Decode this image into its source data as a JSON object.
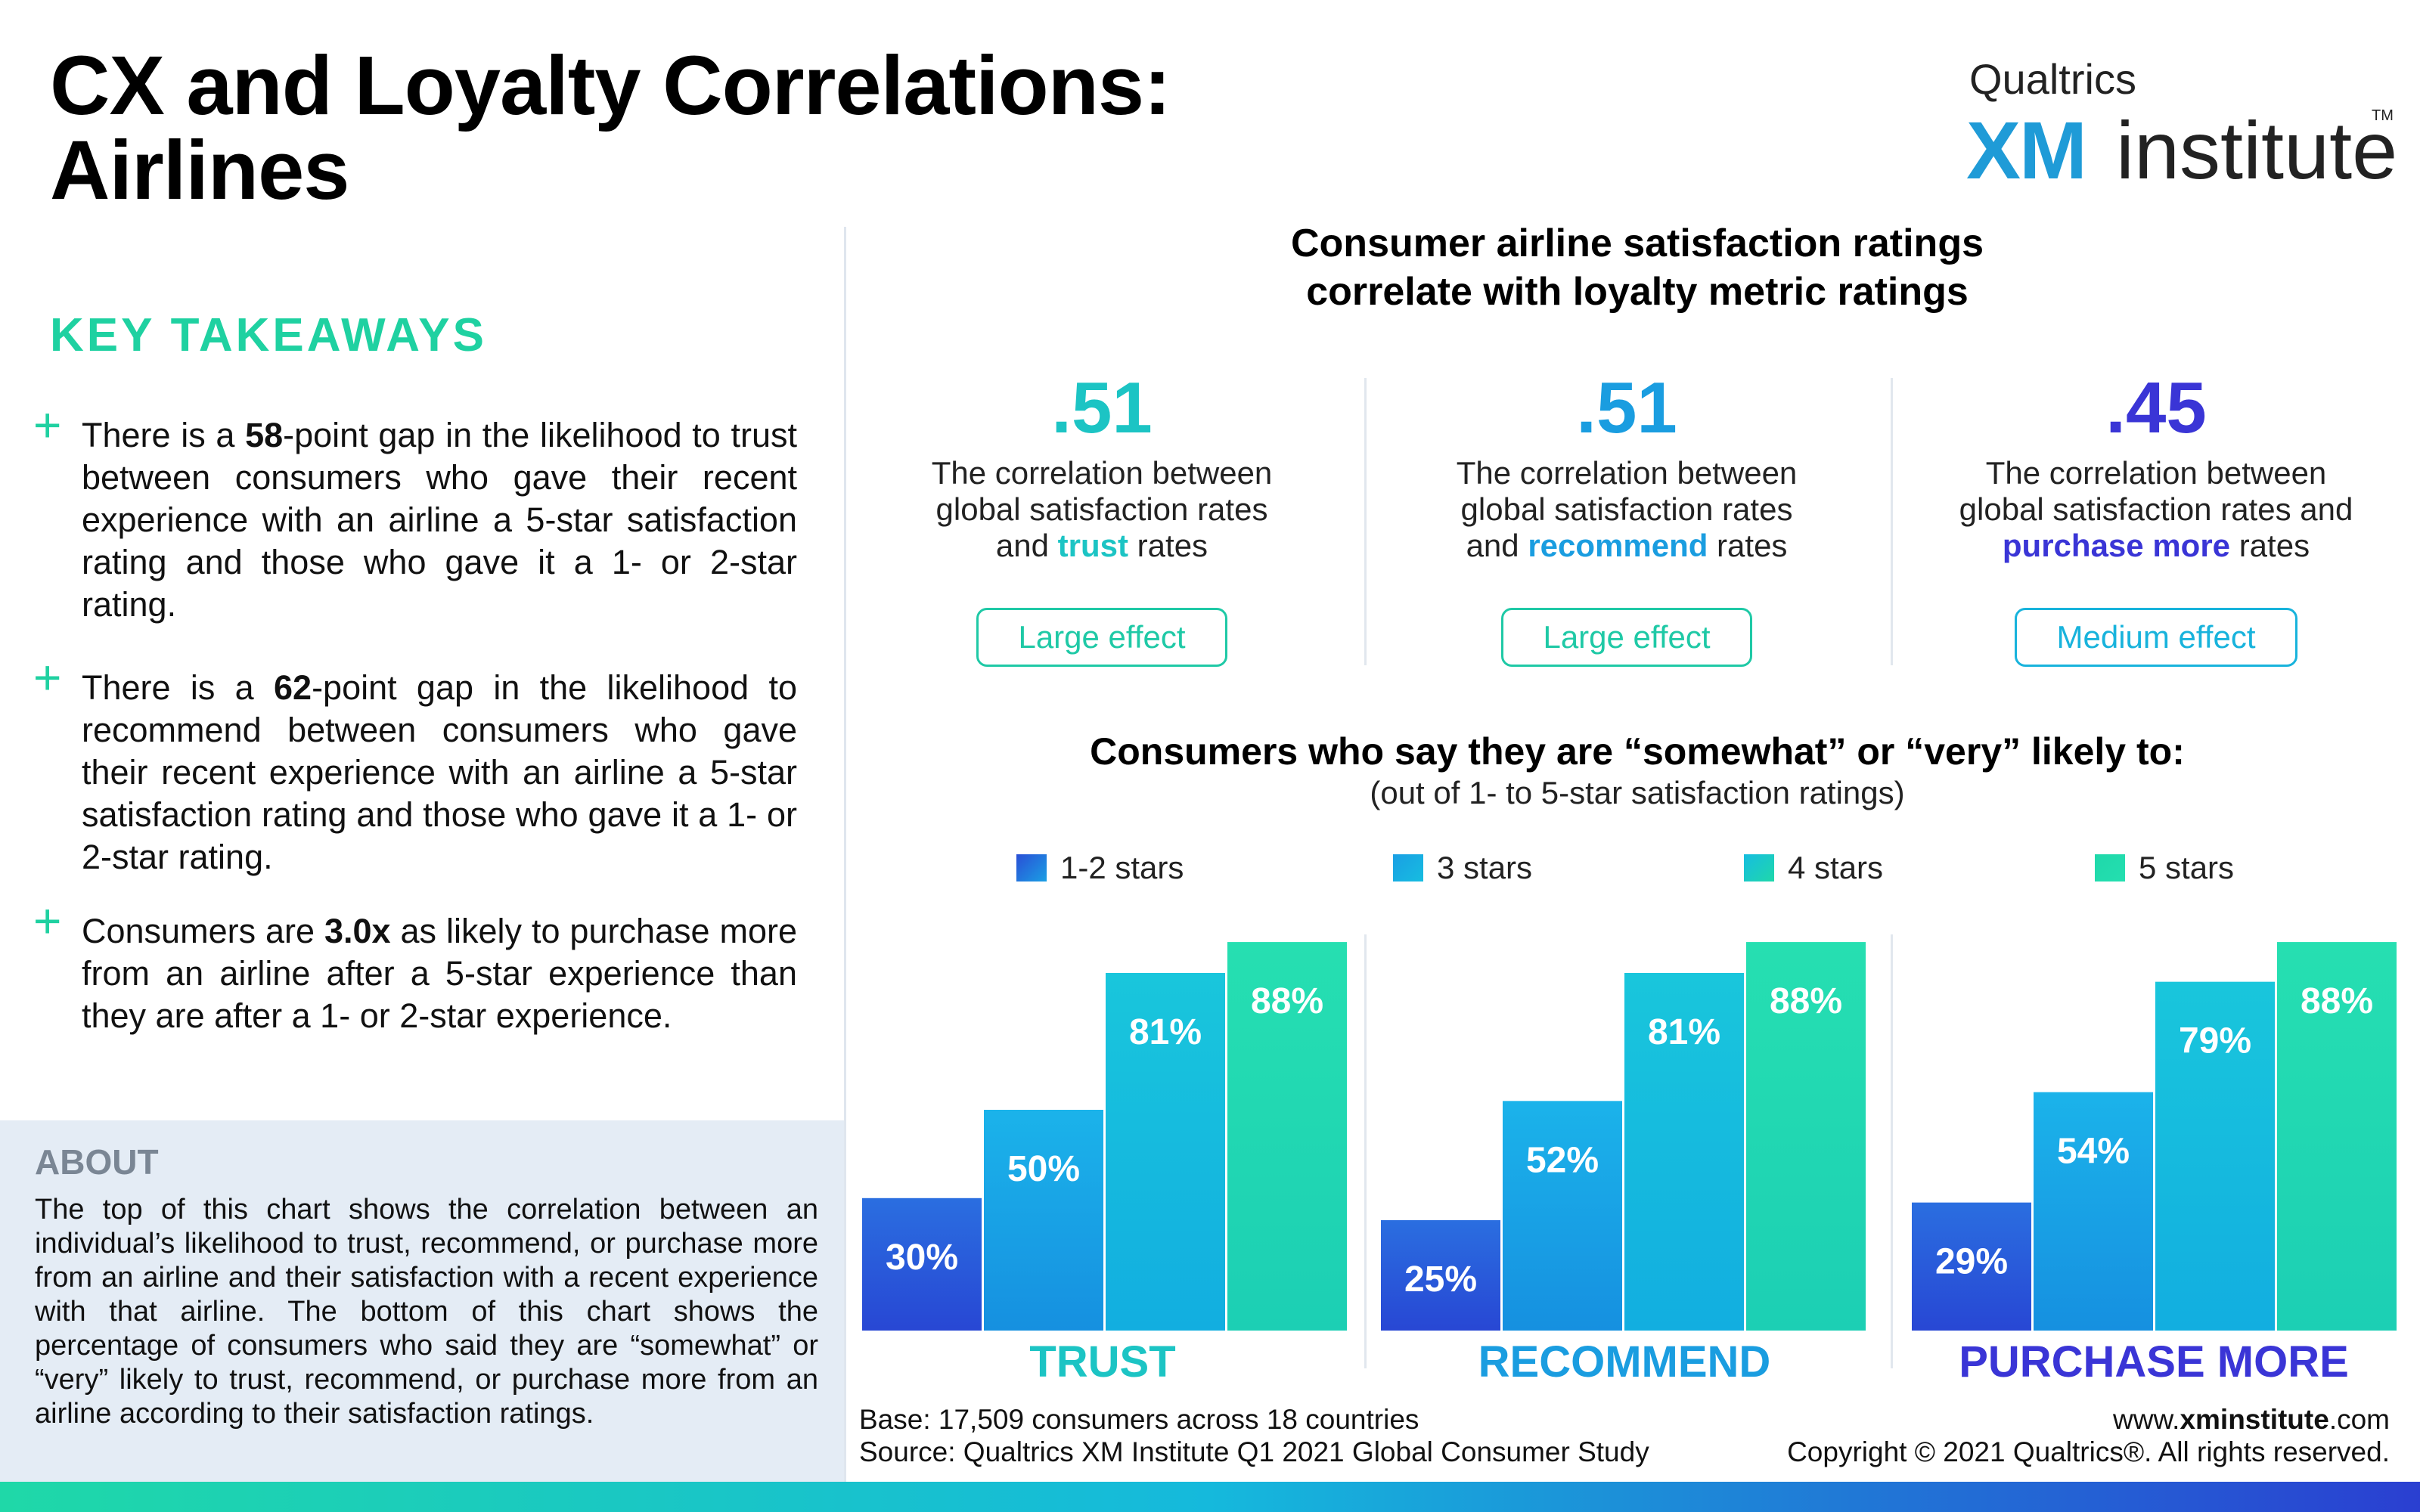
{
  "title_line1": "CX and Loyalty Correlations:",
  "title_line2": "Airlines",
  "logo": {
    "top": "Qualtrics",
    "xm": "XM",
    "institute": "institute",
    "tm": "TM"
  },
  "key_takeaways": {
    "heading": "KEY TAKEAWAYS",
    "bullets": [
      {
        "pre": "There is a ",
        "bold": "58",
        "post": "-point gap in the likelihood to trust between consumers who gave their recent experience with an airline a 5-star satisfaction rating and those who gave it a 1- or 2-star rating."
      },
      {
        "pre": "There is a ",
        "bold": "62",
        "post": "-point gap in the likelihood to recommend between consumers who gave their recent experience with an airline a 5-star satisfaction rating and those who gave it a 1- or 2-star rating."
      },
      {
        "pre": "Consumers are ",
        "bold": "3.0x",
        "post": " as likely to purchase more from an airline after a 5-star experience than they are after a 1- or 2-star experience."
      }
    ]
  },
  "about": {
    "heading": "ABOUT",
    "text": "The top of this chart shows the correlation between an individual’s likelihood to trust, recommend, or purchase more from an airline and their satisfaction with a recent experience with that airline. The bottom of this chart shows the percentage of consumers who said they are “somewhat” or “very” likely to trust, recommend, or purchase more from an airline according to their satisfaction ratings."
  },
  "correlation_section": {
    "heading_line1": "Consumer airline satisfaction ratings",
    "heading_line2": "correlate with loyalty metric ratings",
    "items": [
      {
        "value": ".51",
        "desc_line1": "The correlation between",
        "desc_line2": "global satisfaction rates",
        "desc_pre": "and ",
        "metric": "trust",
        "desc_post": " rates",
        "effect": "Large effect",
        "color": "#1cc4c4",
        "effect_color": "#1fc9a6"
      },
      {
        "value": ".51",
        "desc_line1": "The correlation between",
        "desc_line2": "global satisfaction rates",
        "desc_pre": "and ",
        "metric": "recommend",
        "desc_post": " rates",
        "effect": "Large effect",
        "color": "#1a9de0",
        "effect_color": "#1fc9a6"
      },
      {
        "value": ".45",
        "desc_line1": "The correlation between",
        "desc_line2": "global satisfaction rates and",
        "desc_pre": "",
        "metric": "purchase more",
        "desc_post": " rates",
        "effect": "Medium effect",
        "color": "#3a35d6",
        "effect_color": "#18b3dc"
      }
    ]
  },
  "chart_heading": "Consumers who say they are “somewhat” or “very” likely to:",
  "chart_subheading": "(out of 1- to 5-star satisfaction ratings)",
  "chart_data": {
    "type": "bar",
    "categories": [
      "TRUST",
      "RECOMMEND",
      "PURCHASE MORE"
    ],
    "series": [
      {
        "name": "1-2 stars",
        "values": [
          30,
          25,
          29
        ],
        "color": "#2a4fd6"
      },
      {
        "name": "3 stars",
        "values": [
          50,
          52,
          54
        ],
        "color": "#1a9fe4"
      },
      {
        "name": "4 stars",
        "values": [
          81,
          81,
          79
        ],
        "color": "#16bde0"
      },
      {
        "name": "5 stars",
        "values": [
          88,
          88,
          88
        ],
        "color": "#1fd8aa"
      }
    ],
    "value_suffix": "%",
    "category_colors": [
      "#1cc4c4",
      "#1a9de0",
      "#3a35d6"
    ],
    "ylim": [
      0,
      100
    ],
    "legend_position": "top"
  },
  "footer": {
    "base": "Base: 17,509 consumers across 18 countries",
    "source": "Source: Qualtrics XM Institute Q1 2021 Global Consumer Study",
    "url_pre": "www.",
    "url_bold": "xminstitute",
    "url_post": ".com",
    "copyright": "Copyright © 2021 Qualtrics®. All rights reserved."
  }
}
